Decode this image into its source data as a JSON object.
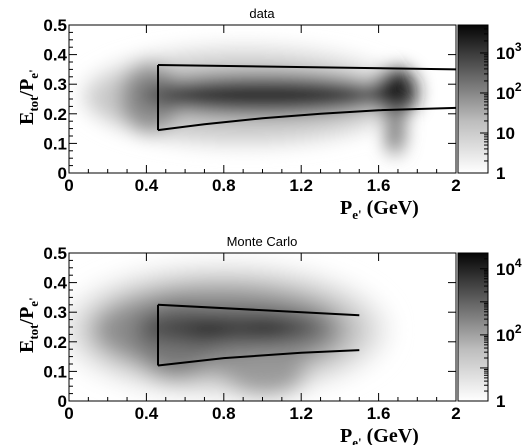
{
  "chart_data": [
    {
      "type": "heatmap",
      "title": "data",
      "xlabel": {
        "main": "P",
        "sub": "e'",
        "unit": " (GeV)"
      },
      "ylabel": {
        "main": "E",
        "sub1": "tot",
        "mid": "/P",
        "sub2": "e'"
      },
      "xlim": [
        0,
        2
      ],
      "ylim": [
        0,
        0.5
      ],
      "xticks": [
        "0",
        "0.4",
        "0.8",
        "1.2",
        "1.6",
        "2"
      ],
      "yticks": [
        "0",
        "0.1",
        "0.2",
        "0.3",
        "0.4",
        "0.5"
      ],
      "color_scale": "log",
      "zlim": [
        1,
        5000
      ],
      "zticks": [
        {
          "value": 1,
          "base": "1",
          "exp": ""
        },
        {
          "value": 10,
          "base": "10",
          "exp": ""
        },
        {
          "value": 100,
          "base": "10",
          "exp": "2"
        },
        {
          "value": 1000,
          "base": "10",
          "exp": "3"
        }
      ],
      "cut_region": {
        "x_start": 0.46,
        "x_end": 2.0,
        "upper": [
          [
            0.46,
            0.365
          ],
          [
            2.0,
            0.35
          ]
        ],
        "lower": [
          [
            0.46,
            0.145
          ],
          [
            0.7,
            0.165
          ],
          [
            1.0,
            0.185
          ],
          [
            1.3,
            0.2
          ],
          [
            1.6,
            0.212
          ],
          [
            2.0,
            0.22
          ]
        ]
      },
      "density_description": "band centred near 0.26-0.28 from P=0.3 to P=1.8 GeV, peak density near P=1.75 GeV"
    },
    {
      "type": "heatmap",
      "title": "Monte Carlo",
      "xlabel": {
        "main": "P",
        "sub": "e'",
        "unit": " (GeV)"
      },
      "ylabel": {
        "main": "E",
        "sub1": "tot",
        "mid": "/P",
        "sub2": "e'"
      },
      "xlim": [
        0,
        2
      ],
      "ylim": [
        0,
        0.5
      ],
      "xticks": [
        "0",
        "0.4",
        "0.8",
        "1.2",
        "1.6",
        "2"
      ],
      "yticks": [
        "0",
        "0.1",
        "0.2",
        "0.3",
        "0.4",
        "0.5"
      ],
      "color_scale": "log",
      "zlim": [
        1,
        30000
      ],
      "zticks": [
        {
          "value": 1,
          "base": "1",
          "exp": ""
        },
        {
          "value": 100,
          "base": "10",
          "exp": "2"
        },
        {
          "value": 10000,
          "base": "10",
          "exp": "4"
        }
      ],
      "cut_region": {
        "x_start": 0.46,
        "x_end": 1.5,
        "upper": [
          [
            0.46,
            0.325
          ],
          [
            1.5,
            0.29
          ]
        ],
        "lower": [
          [
            0.46,
            0.12
          ],
          [
            0.8,
            0.145
          ],
          [
            1.2,
            0.163
          ],
          [
            1.5,
            0.172
          ]
        ]
      },
      "density_description": "broad band centred near 0.22 from P=0.3 to P=1.45 GeV, peaks near P=0.75 and 1.05 GeV"
    }
  ]
}
